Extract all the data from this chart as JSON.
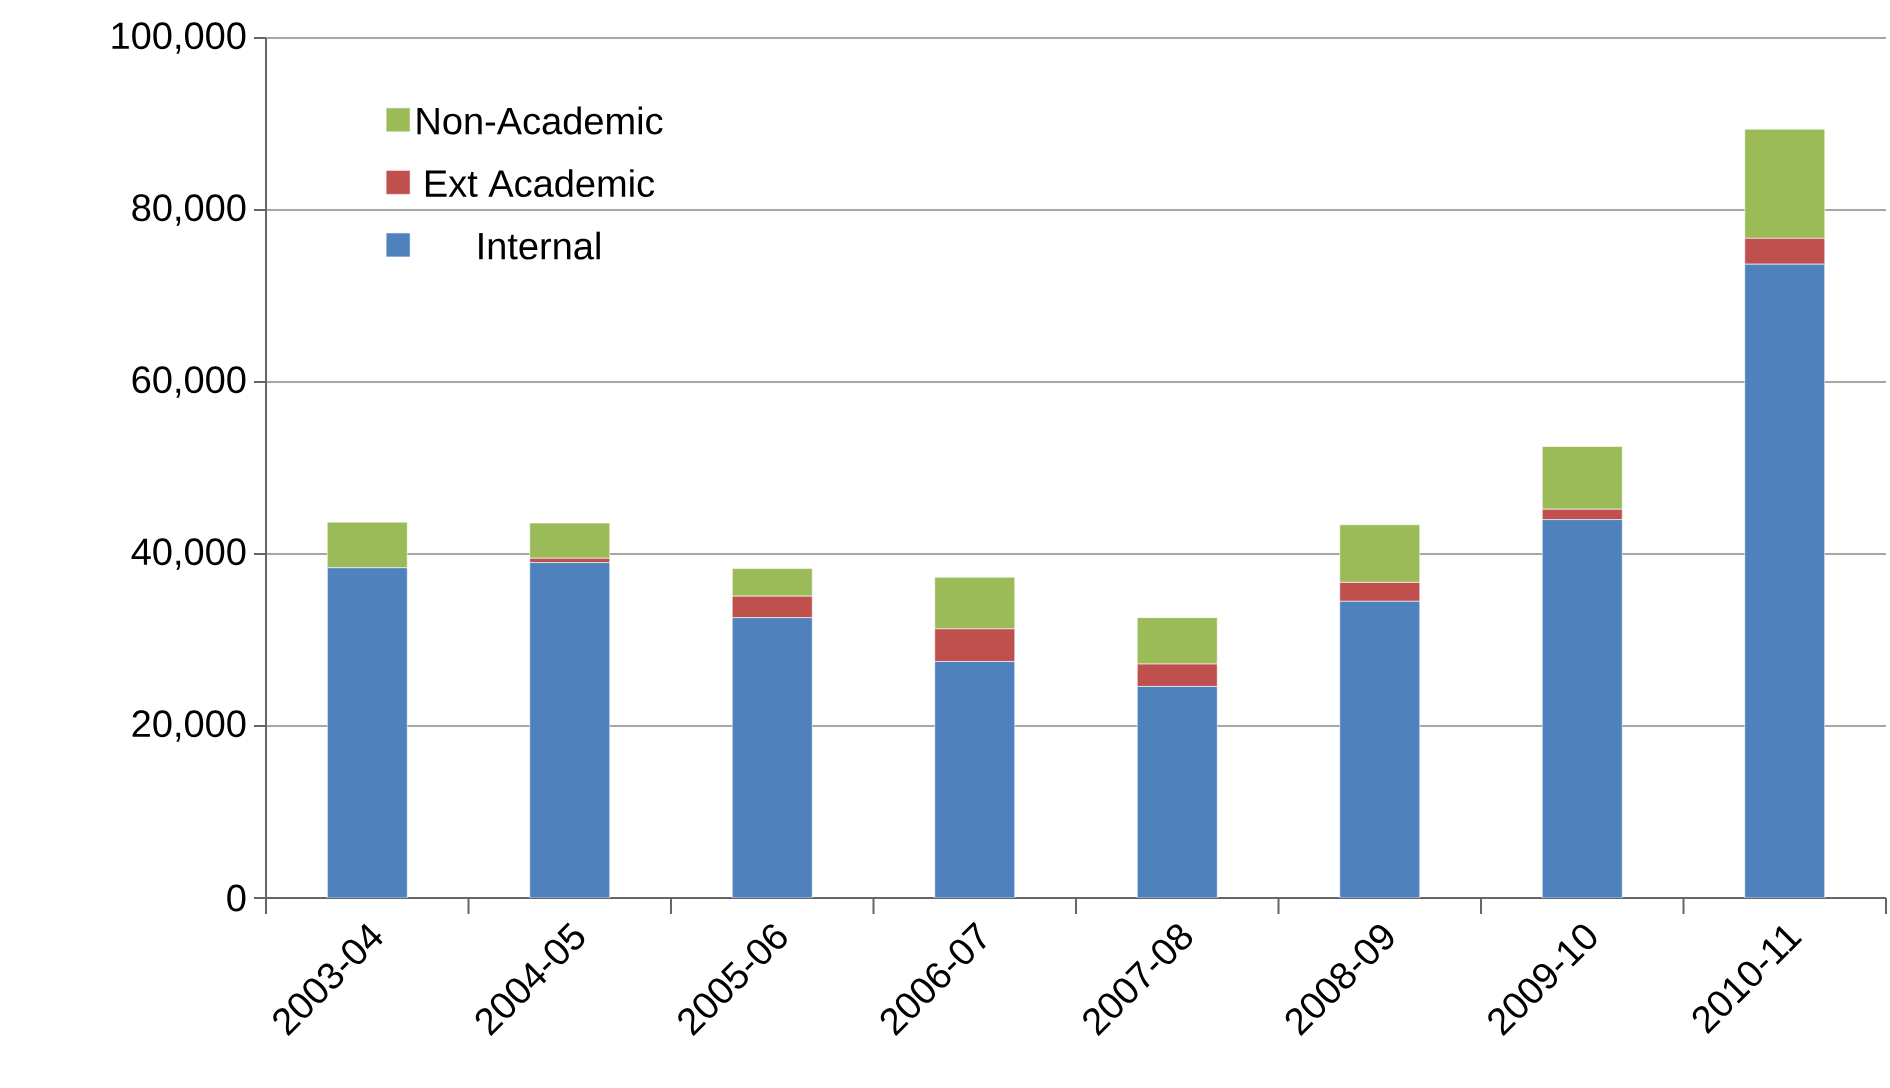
{
  "chart_data": {
    "type": "bar",
    "stacked": true,
    "categories": [
      "2003-04",
      "2004-05",
      "2005-06",
      "2006-07",
      "2007-08",
      "2008-09",
      "2009-10",
      "2010-11"
    ],
    "series": [
      {
        "name": "Internal",
        "color": "#4f81bd",
        "values": [
          38400,
          39000,
          32600,
          27500,
          24600,
          34500,
          44000,
          73700
        ]
      },
      {
        "name": "Ext Academic",
        "color": "#c0504d",
        "values": [
          0,
          500,
          2500,
          3800,
          2600,
          2200,
          1200,
          3000
        ]
      },
      {
        "name": "Non-Academic",
        "color": "#9bbb59",
        "values": [
          5300,
          4100,
          3200,
          6000,
          5400,
          6700,
          7300,
          12700
        ]
      }
    ],
    "ylim": [
      0,
      100000
    ],
    "yticks": [
      {
        "value": 0,
        "label": "0"
      },
      {
        "value": 20000,
        "label": "20,000"
      },
      {
        "value": 40000,
        "label": "40,000"
      },
      {
        "value": 60000,
        "label": "60,000"
      },
      {
        "value": 80000,
        "label": "80,000"
      },
      {
        "value": 100000,
        "label": "100,000"
      }
    ],
    "grid": "y",
    "legend": "top left"
  }
}
